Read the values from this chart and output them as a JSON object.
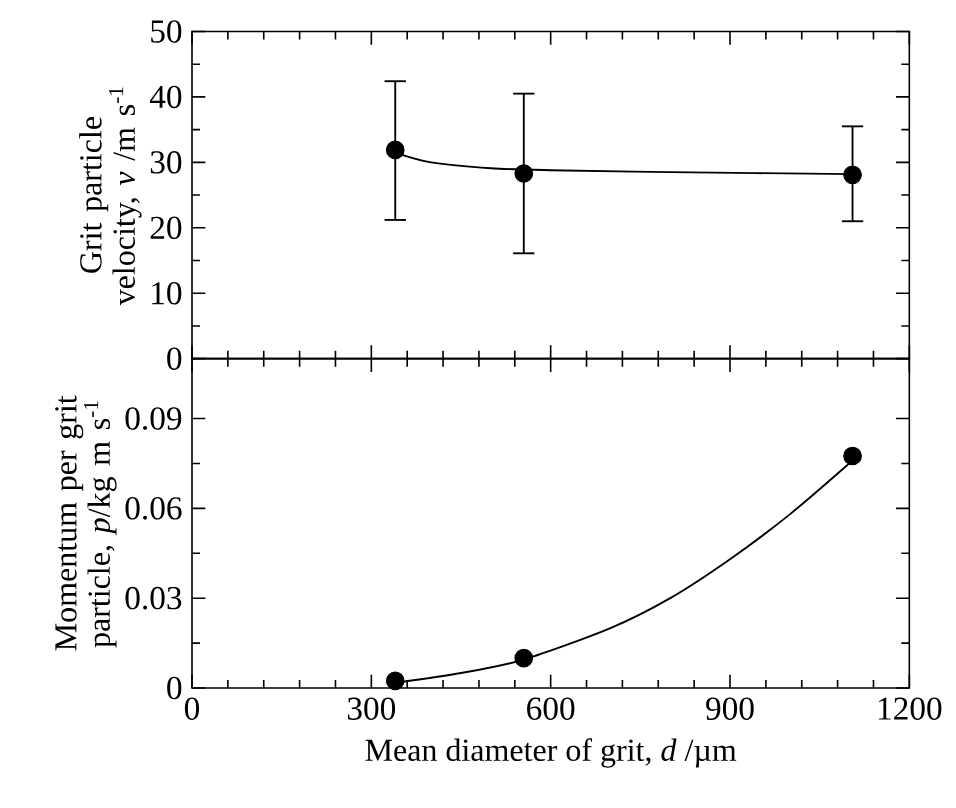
{
  "chart_data": [
    {
      "type": "scatter",
      "ylabel": "Grit particle velocity, *v* /m s$^{-1}$",
      "x": [
        340,
        555,
        1105
      ],
      "xlim": [
        0,
        1200
      ],
      "xticks": [
        0,
        300,
        600,
        900,
        1200
      ],
      "ylim": [
        0,
        50
      ],
      "yticks": [
        0,
        10,
        20,
        30,
        40,
        50
      ],
      "tick_labels": "y",
      "series": [
        {
          "color": "#000000",
          "marker": "circle",
          "values": [
            31.9,
            28.3,
            28.1
          ],
          "errors": [
            [
              21.2,
              42.4
            ],
            [
              16.1,
              40.5
            ],
            [
              21.0,
              35.5
            ]
          ]
        },
        {
          "type": "line",
          "color": "#000000",
          "marker": "none",
          "x": [
            340,
            400,
            500,
            600,
            800,
            1105
          ],
          "values": [
            31.5,
            30.0,
            29.1,
            28.8,
            28.5,
            28.2
          ]
        }
      ]
    },
    {
      "type": "scatter",
      "xlabel": "Mean diameter of grit, *d* /µm",
      "ylabel": "Momentum per grit particle, *p*/kg m s$^{-1}$",
      "x": [
        340,
        555,
        1105
      ],
      "xlim": [
        0,
        1200
      ],
      "xticks": [
        0,
        300,
        600,
        900,
        1200
      ],
      "ylim": [
        0,
        0.11
      ],
      "yticks": [
        0,
        0.03,
        0.06,
        0.09
      ],
      "series": [
        {
          "color": "#000000",
          "marker": "circle",
          "values": [
            0.0024,
            0.01,
            0.0775
          ]
        },
        {
          "type": "line",
          "color": "#000000",
          "marker": "none",
          "x": [
            350,
            450,
            555,
            700,
            800,
            900,
            1000,
            1105
          ],
          "values": [
            0.002,
            0.005,
            0.0095,
            0.02,
            0.03,
            0.043,
            0.058,
            0.076
          ]
        }
      ]
    }
  ]
}
